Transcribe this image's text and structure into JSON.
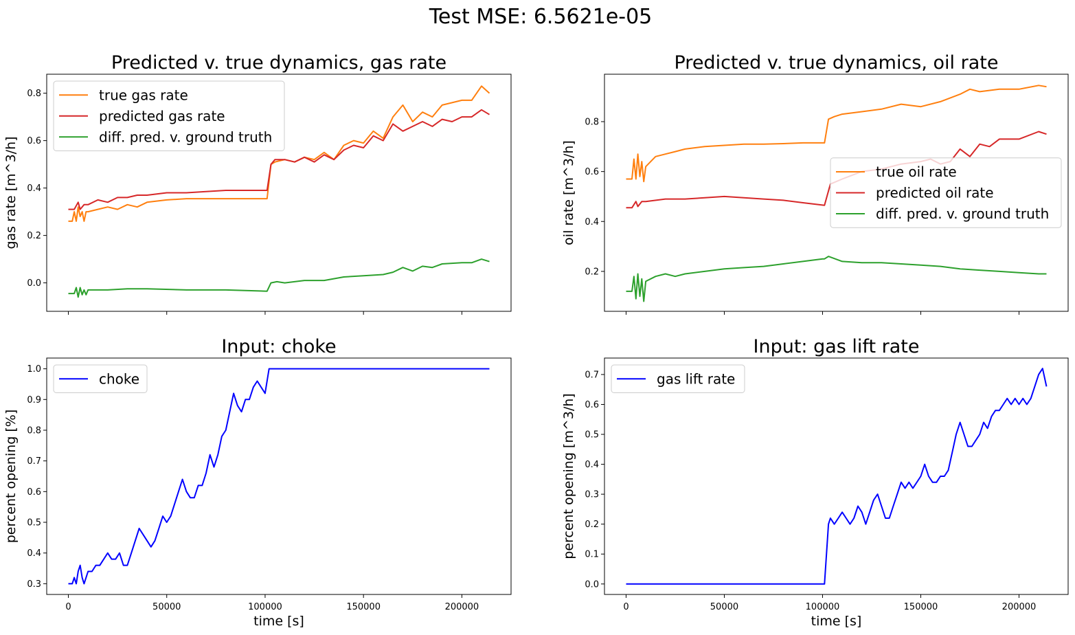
{
  "figure": {
    "suptitle": "Test MSE: 6.5621e-05"
  },
  "chart_data": [
    {
      "type": "line",
      "title": "Predicted v. true dynamics, gas rate",
      "xlabel": "",
      "ylabel": "gas rate [m^3/h]",
      "xlim": [
        -11000,
        225000
      ],
      "ylim": [
        -0.12,
        0.88
      ],
      "xticks": [
        0,
        50000,
        100000,
        150000,
        200000
      ],
      "xtick_labels_visible": false,
      "yticks": [
        0.0,
        0.2,
        0.4,
        0.6,
        0.8
      ],
      "ytick_labels": [
        "0.0",
        "0.2",
        "0.4",
        "0.6",
        "0.8"
      ],
      "grid": false,
      "legend": "upper left",
      "series": [
        {
          "name": "true gas rate",
          "color": "#ff7f0e",
          "x": [
            0,
            2000,
            3000,
            4000,
            5000,
            6000,
            7000,
            8000,
            9000,
            10000,
            15000,
            20000,
            25000,
            30000,
            35000,
            40000,
            50000,
            60000,
            70000,
            80000,
            90000,
            101000,
            103000,
            105000,
            110000,
            115000,
            120000,
            125000,
            130000,
            135000,
            140000,
            145000,
            150000,
            155000,
            160000,
            165000,
            170000,
            175000,
            180000,
            185000,
            190000,
            195000,
            200000,
            205000,
            210000,
            214000
          ],
          "y": [
            0.26,
            0.26,
            0.3,
            0.26,
            0.32,
            0.28,
            0.3,
            0.26,
            0.3,
            0.3,
            0.31,
            0.32,
            0.31,
            0.33,
            0.32,
            0.34,
            0.35,
            0.355,
            0.355,
            0.355,
            0.355,
            0.355,
            0.5,
            0.51,
            0.52,
            0.51,
            0.53,
            0.52,
            0.55,
            0.52,
            0.58,
            0.6,
            0.59,
            0.64,
            0.61,
            0.7,
            0.75,
            0.68,
            0.72,
            0.7,
            0.75,
            0.76,
            0.77,
            0.77,
            0.83,
            0.8
          ]
        },
        {
          "name": "predicted gas rate",
          "color": "#d62728",
          "x": [
            0,
            3000,
            5000,
            6000,
            8000,
            10000,
            15000,
            20000,
            25000,
            30000,
            35000,
            40000,
            50000,
            60000,
            70000,
            80000,
            90000,
            101000,
            103000,
            105000,
            110000,
            115000,
            120000,
            125000,
            130000,
            135000,
            140000,
            145000,
            150000,
            155000,
            160000,
            165000,
            170000,
            175000,
            180000,
            185000,
            190000,
            195000,
            200000,
            205000,
            210000,
            214000
          ],
          "y": [
            0.31,
            0.31,
            0.34,
            0.31,
            0.33,
            0.33,
            0.35,
            0.34,
            0.36,
            0.36,
            0.37,
            0.37,
            0.38,
            0.38,
            0.385,
            0.39,
            0.39,
            0.39,
            0.5,
            0.52,
            0.52,
            0.51,
            0.53,
            0.51,
            0.54,
            0.52,
            0.56,
            0.58,
            0.57,
            0.62,
            0.6,
            0.67,
            0.64,
            0.66,
            0.68,
            0.66,
            0.69,
            0.68,
            0.7,
            0.7,
            0.73,
            0.71
          ]
        },
        {
          "name": "diff. pred. v. ground truth",
          "color": "#2ca02c",
          "x": [
            0,
            3000,
            4000,
            5000,
            6000,
            7000,
            8000,
            9000,
            10000,
            20000,
            30000,
            40000,
            60000,
            80000,
            101000,
            103000,
            106000,
            110000,
            120000,
            130000,
            140000,
            150000,
            160000,
            165000,
            170000,
            175000,
            180000,
            185000,
            190000,
            200000,
            205000,
            210000,
            214000
          ],
          "y": [
            -0.045,
            -0.045,
            -0.02,
            -0.06,
            -0.02,
            -0.05,
            -0.03,
            -0.05,
            -0.03,
            -0.03,
            -0.025,
            -0.025,
            -0.03,
            -0.03,
            -0.035,
            0.0,
            0.005,
            0.0,
            0.01,
            0.01,
            0.025,
            0.03,
            0.035,
            0.045,
            0.065,
            0.05,
            0.07,
            0.065,
            0.08,
            0.085,
            0.085,
            0.1,
            0.09
          ]
        }
      ]
    },
    {
      "type": "line",
      "title": "Predicted v. true dynamics, oil rate",
      "xlabel": "",
      "ylabel": "oil rate [m^3/h]",
      "xlim": [
        -11000,
        225000
      ],
      "ylim": [
        0.04,
        0.99
      ],
      "xticks": [
        0,
        50000,
        100000,
        150000,
        200000
      ],
      "xtick_labels_visible": false,
      "yticks": [
        0.2,
        0.4,
        0.6,
        0.8
      ],
      "ytick_labels": [
        "0.2",
        "0.4",
        "0.6",
        "0.8"
      ],
      "grid": false,
      "legend": "center right",
      "series": [
        {
          "name": "true oil rate",
          "color": "#ff7f0e",
          "x": [
            0,
            3000,
            4000,
            5000,
            6000,
            7000,
            8000,
            9000,
            10000,
            15000,
            20000,
            25000,
            30000,
            40000,
            50000,
            60000,
            70000,
            80000,
            90000,
            100000,
            101000,
            103000,
            106000,
            110000,
            120000,
            130000,
            140000,
            150000,
            160000,
            170000,
            175000,
            180000,
            190000,
            200000,
            210000,
            214000
          ],
          "y": [
            0.57,
            0.57,
            0.65,
            0.57,
            0.67,
            0.58,
            0.64,
            0.56,
            0.62,
            0.66,
            0.67,
            0.68,
            0.69,
            0.7,
            0.705,
            0.71,
            0.71,
            0.712,
            0.715,
            0.715,
            0.715,
            0.81,
            0.82,
            0.83,
            0.84,
            0.85,
            0.87,
            0.86,
            0.88,
            0.91,
            0.93,
            0.92,
            0.93,
            0.93,
            0.945,
            0.94
          ]
        },
        {
          "name": "predicted oil rate",
          "color": "#d62728",
          "x": [
            0,
            3000,
            5000,
            6000,
            8000,
            10000,
            20000,
            30000,
            40000,
            50000,
            60000,
            70000,
            80000,
            90000,
            101000,
            104000,
            110000,
            120000,
            130000,
            140000,
            150000,
            155000,
            160000,
            165000,
            170000,
            175000,
            180000,
            185000,
            190000,
            200000,
            210000,
            214000
          ],
          "y": [
            0.455,
            0.455,
            0.48,
            0.46,
            0.48,
            0.48,
            0.49,
            0.49,
            0.495,
            0.5,
            0.495,
            0.49,
            0.485,
            0.475,
            0.465,
            0.55,
            0.57,
            0.6,
            0.61,
            0.63,
            0.64,
            0.65,
            0.63,
            0.64,
            0.69,
            0.66,
            0.71,
            0.7,
            0.73,
            0.73,
            0.76,
            0.75
          ]
        },
        {
          "name": "diff. pred. v. ground truth",
          "color": "#2ca02c",
          "x": [
            0,
            3000,
            4000,
            5000,
            6000,
            7000,
            8000,
            9000,
            10000,
            15000,
            20000,
            25000,
            30000,
            40000,
            50000,
            60000,
            70000,
            80000,
            90000,
            100000,
            101000,
            103000,
            110000,
            120000,
            130000,
            140000,
            150000,
            160000,
            170000,
            180000,
            190000,
            200000,
            210000,
            214000
          ],
          "y": [
            0.12,
            0.12,
            0.18,
            0.09,
            0.19,
            0.1,
            0.17,
            0.08,
            0.16,
            0.18,
            0.19,
            0.18,
            0.19,
            0.2,
            0.21,
            0.215,
            0.22,
            0.23,
            0.24,
            0.25,
            0.25,
            0.26,
            0.24,
            0.235,
            0.235,
            0.23,
            0.225,
            0.22,
            0.21,
            0.205,
            0.2,
            0.195,
            0.19,
            0.19
          ]
        }
      ]
    },
    {
      "type": "line",
      "title": "Input: choke",
      "xlabel": "time [s]",
      "ylabel": "percent opening [%]",
      "xlim": [
        -11000,
        225000
      ],
      "ylim": [
        0.265,
        1.035
      ],
      "xticks": [
        0,
        50000,
        100000,
        150000,
        200000
      ],
      "xtick_labels_visible": true,
      "xtick_labels": [
        "0",
        "50000",
        "100000",
        "150000",
        "200000"
      ],
      "yticks": [
        0.3,
        0.4,
        0.5,
        0.6,
        0.7,
        0.8,
        0.9,
        1.0
      ],
      "ytick_labels": [
        "0.3",
        "0.4",
        "0.5",
        "0.6",
        "0.7",
        "0.8",
        "0.9",
        "1.0"
      ],
      "grid": false,
      "legend": "upper left",
      "series": [
        {
          "name": "choke",
          "color": "#0000ff",
          "x": [
            0,
            2000,
            3000,
            4000,
            5000,
            6000,
            7000,
            8000,
            9000,
            10000,
            12000,
            14000,
            16000,
            18000,
            20000,
            22000,
            24000,
            26000,
            28000,
            30000,
            32000,
            34000,
            36000,
            38000,
            40000,
            42000,
            44000,
            46000,
            48000,
            50000,
            52000,
            54000,
            56000,
            58000,
            60000,
            62000,
            64000,
            66000,
            68000,
            70000,
            72000,
            74000,
            76000,
            78000,
            80000,
            82000,
            84000,
            86000,
            88000,
            90000,
            92000,
            94000,
            96000,
            98000,
            100000,
            102000,
            214000
          ],
          "y": [
            0.3,
            0.3,
            0.32,
            0.3,
            0.34,
            0.36,
            0.32,
            0.3,
            0.32,
            0.34,
            0.34,
            0.36,
            0.36,
            0.38,
            0.4,
            0.38,
            0.38,
            0.4,
            0.36,
            0.36,
            0.4,
            0.44,
            0.48,
            0.46,
            0.44,
            0.42,
            0.44,
            0.48,
            0.52,
            0.5,
            0.52,
            0.56,
            0.6,
            0.64,
            0.6,
            0.58,
            0.58,
            0.62,
            0.62,
            0.66,
            0.72,
            0.68,
            0.72,
            0.78,
            0.8,
            0.86,
            0.92,
            0.88,
            0.86,
            0.9,
            0.9,
            0.94,
            0.96,
            0.94,
            0.92,
            1.0,
            1.0
          ]
        }
      ]
    },
    {
      "type": "line",
      "title": "Input: gas lift rate",
      "xlabel": "time [s]",
      "ylabel": "percent opening [m^3/h]",
      "xlim": [
        -11000,
        225000
      ],
      "ylim": [
        -0.035,
        0.755
      ],
      "xticks": [
        0,
        50000,
        100000,
        150000,
        200000
      ],
      "xtick_labels_visible": true,
      "xtick_labels": [
        "0",
        "50000",
        "100000",
        "150000",
        "200000"
      ],
      "yticks": [
        0.0,
        0.1,
        0.2,
        0.3,
        0.4,
        0.5,
        0.6,
        0.7
      ],
      "ytick_labels": [
        "0.0",
        "0.1",
        "0.2",
        "0.3",
        "0.4",
        "0.5",
        "0.6",
        "0.7"
      ],
      "grid": false,
      "legend": "upper left",
      "series": [
        {
          "name": "gas lift rate",
          "color": "#0000ff",
          "x": [
            0,
            100000,
            101000,
            103000,
            104000,
            106000,
            108000,
            110000,
            112000,
            114000,
            116000,
            118000,
            120000,
            122000,
            124000,
            126000,
            128000,
            130000,
            132000,
            134000,
            136000,
            138000,
            140000,
            142000,
            144000,
            146000,
            148000,
            150000,
            152000,
            154000,
            156000,
            158000,
            160000,
            162000,
            164000,
            166000,
            168000,
            170000,
            172000,
            174000,
            176000,
            178000,
            180000,
            182000,
            184000,
            186000,
            188000,
            190000,
            192000,
            194000,
            196000,
            198000,
            200000,
            202000,
            204000,
            206000,
            208000,
            210000,
            212000,
            214000
          ],
          "y": [
            0.0,
            0.0,
            0.0,
            0.2,
            0.22,
            0.2,
            0.22,
            0.24,
            0.22,
            0.2,
            0.22,
            0.26,
            0.24,
            0.2,
            0.24,
            0.28,
            0.3,
            0.26,
            0.22,
            0.22,
            0.26,
            0.3,
            0.34,
            0.32,
            0.34,
            0.32,
            0.34,
            0.36,
            0.4,
            0.36,
            0.34,
            0.34,
            0.36,
            0.36,
            0.38,
            0.44,
            0.5,
            0.54,
            0.5,
            0.46,
            0.46,
            0.48,
            0.5,
            0.54,
            0.52,
            0.56,
            0.58,
            0.58,
            0.6,
            0.62,
            0.6,
            0.62,
            0.6,
            0.62,
            0.6,
            0.62,
            0.66,
            0.7,
            0.72,
            0.66
          ]
        }
      ]
    }
  ]
}
